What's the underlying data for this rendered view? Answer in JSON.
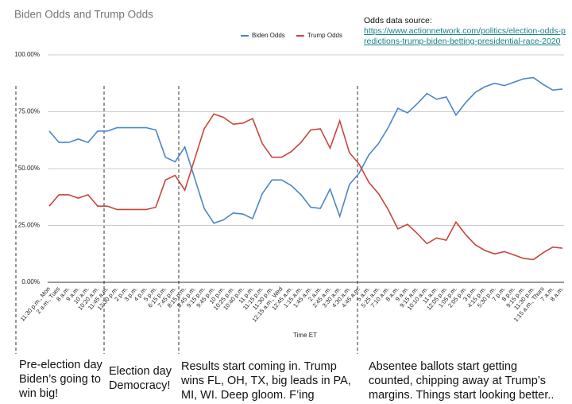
{
  "chart_data": {
    "type": "line",
    "title": "Biden Odds and Trump Odds",
    "xlabel": "Time ET",
    "source_label": "Odds data source:",
    "source_url": "https://www.actionnetwork.com/politics/election-odds-predictions-trump-biden-betting-presidential-race-2020",
    "categories": [
      "11:30 p.m., Mon",
      "2 a.m., Tues",
      "8 a.m.",
      "9 a.m.",
      "10 a.m.",
      "10:20 a.m.",
      "11:45 a.m.",
      "12:30 p.m.",
      "2 p.m.",
      "3 p.m.",
      "4 p.m.",
      "5 p.m.",
      "6:15 p.m.",
      "7:45 p.m.",
      "8:15 p.m.",
      "8:45 p.m.",
      "9:15 p.m.",
      "9:45 p.m.",
      "10 p.m.",
      "10:25 p.m.",
      "10:40 p.m.",
      "11 p.m.",
      "11:15 p.m.",
      "11:30 p.m.",
      "12:15 a.m., Wed",
      "12:45 a.m.",
      "1:15 a.m.",
      "1:45 a.m.",
      "2 a.m.",
      "2:45 a.m.",
      "3:30 a.m.",
      "4:30 a.m.",
      "4:45 a.m.",
      "5 a.m.",
      "5:25 a.m.",
      "7:10 a.m.",
      "8 a.m.",
      "9 a.m.",
      "9:15 a.m.",
      "10:10 a.m.",
      "11 a.m.",
      "12:05 p.m.",
      "1:05 p.m.",
      "2:05 p.m.",
      "3 p.m.",
      "4:15 p.m.",
      "5:30 p.m.",
      "7 p.m.",
      "8 p.m.",
      "9:15 p.m.",
      "11:30 p.m.",
      "1:15 a.m., Thurs",
      "7 a.m.",
      "8 a.m."
    ],
    "series": [
      {
        "name": "Biden Odds",
        "color": "#4a86c8",
        "values": [
          66.5,
          61.5,
          61.5,
          63,
          61.5,
          66.5,
          66.5,
          68,
          68,
          68,
          68,
          67,
          55,
          53,
          59.5,
          46,
          32.5,
          26,
          27.5,
          30.5,
          30,
          28,
          39,
          45,
          45,
          42.5,
          38.5,
          33,
          32.5,
          41,
          29,
          43,
          48,
          56,
          61,
          68,
          76.5,
          74.5,
          78.5,
          83,
          80.5,
          81.5,
          73.5,
          79,
          83.5,
          86,
          87.5,
          86.5,
          88,
          89.5,
          90,
          87,
          84.5,
          85
        ]
      },
      {
        "name": "Trump Odds",
        "color": "#c8453a",
        "values": [
          33.5,
          38.5,
          38.5,
          37,
          38.5,
          33.5,
          33.5,
          32,
          32,
          32,
          32,
          33,
          45,
          47,
          40.5,
          54,
          67.5,
          74,
          72.5,
          69.5,
          70,
          72,
          61,
          55,
          55,
          57.5,
          61.5,
          67,
          67.5,
          59,
          71,
          57,
          52,
          44,
          39,
          32,
          23.5,
          25.5,
          21.5,
          17,
          19.5,
          18.5,
          26.5,
          21,
          16.5,
          14,
          12.5,
          13.5,
          12,
          10.5,
          10,
          13,
          15.5,
          15
        ]
      }
    ],
    "ylim": [
      0,
      100
    ],
    "yticks": [
      {
        "value": 0,
        "label": "0.00%"
      },
      {
        "value": 25,
        "label": "25.00%"
      },
      {
        "value": 50,
        "label": "50.00%"
      },
      {
        "value": 75,
        "label": "75.00%"
      },
      {
        "value": 100,
        "label": "100.00%"
      }
    ],
    "grid": true,
    "legend": "top",
    "annotations": [
      "Pre-election day Biden’s going to win big!",
      "Election day Democracy!",
      "Results start coming in. Trump wins FL, OH, TX, big leads in PA, MI, WI. Deep gloom. F’ing pollsters..",
      "Absentee ballots start getting counted, chipping away at Trump’s margins. Things start looking better.."
    ]
  }
}
